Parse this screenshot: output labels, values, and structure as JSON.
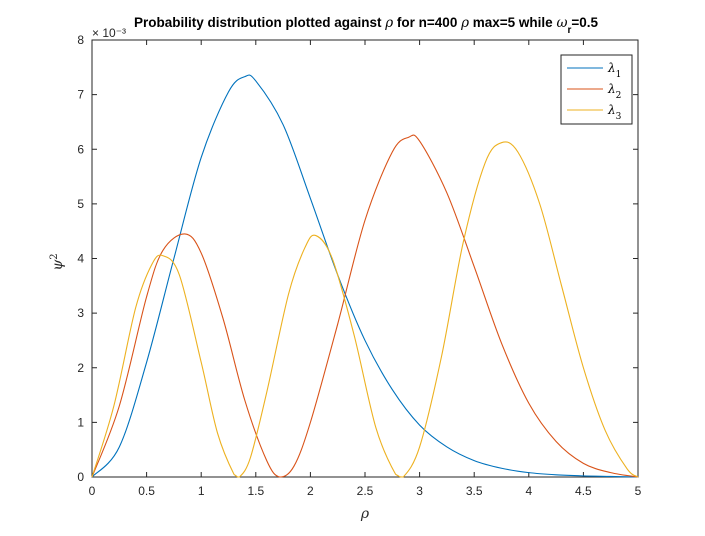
{
  "chart_data": {
    "type": "line",
    "title_parts": {
      "prefix": "Probability distribution plotted against ",
      "rho": "ρ",
      "middle": " for n=400 ",
      "rho2": "ρ",
      "middle2": " max=5 while ",
      "omega": "ω",
      "omega_sub": "r",
      "suffix": "=0.5"
    },
    "xlabel": "ρ",
    "ylabel": "ψ",
    "ylabel_sup": "2",
    "y_exponent": "× 10⁻³",
    "xlim": [
      0,
      5
    ],
    "ylim": [
      0,
      8
    ],
    "x_ticks": [
      "0",
      "0.5",
      "1",
      "1.5",
      "2",
      "2.5",
      "3",
      "3.5",
      "4",
      "4.5",
      "5"
    ],
    "y_ticks": [
      "0",
      "1",
      "2",
      "3",
      "4",
      "5",
      "6",
      "7",
      "8"
    ],
    "legend_position": "top-right",
    "grid": false,
    "colors": {
      "lambda1": "#0072BD",
      "lambda2": "#D95319",
      "lambda3": "#EDB120"
    },
    "series": [
      {
        "name": "λ₁",
        "legend_main": "λ",
        "legend_sub": "1",
        "color": "#0072BD",
        "x": [
          0,
          0.25,
          0.5,
          0.75,
          1.0,
          1.25,
          1.4,
          1.5,
          1.75,
          2.0,
          2.25,
          2.5,
          2.75,
          3.0,
          3.25,
          3.5,
          3.75,
          4.0,
          4.25,
          4.5,
          4.75,
          5.0
        ],
        "y": [
          0,
          0.55,
          2.1,
          4.0,
          5.85,
          7.05,
          7.33,
          7.25,
          6.45,
          5.1,
          3.7,
          2.5,
          1.6,
          0.95,
          0.55,
          0.3,
          0.16,
          0.08,
          0.04,
          0.02,
          0.01,
          0
        ]
      },
      {
        "name": "λ₂",
        "legend_main": "λ",
        "legend_sub": "2",
        "color": "#D95319",
        "x": [
          0,
          0.25,
          0.5,
          0.65,
          0.85,
          1.0,
          1.2,
          1.4,
          1.6,
          1.72,
          1.85,
          2.0,
          2.25,
          2.5,
          2.75,
          2.9,
          3.0,
          3.25,
          3.5,
          3.75,
          4.0,
          4.25,
          4.5,
          4.75,
          5.0
        ],
        "y": [
          0,
          1.3,
          3.3,
          4.15,
          4.45,
          4.1,
          2.9,
          1.4,
          0.3,
          0,
          0.2,
          1.0,
          2.8,
          4.7,
          5.95,
          6.22,
          6.15,
          5.2,
          3.85,
          2.45,
          1.35,
          0.65,
          0.25,
          0.08,
          0
        ]
      },
      {
        "name": "λ₃",
        "legend_main": "λ",
        "legend_sub": "3",
        "color": "#EDB120",
        "x": [
          0,
          0.2,
          0.4,
          0.55,
          0.65,
          0.8,
          1.0,
          1.15,
          1.3,
          1.35,
          1.45,
          1.6,
          1.8,
          1.95,
          2.05,
          2.2,
          2.4,
          2.6,
          2.78,
          2.85,
          3.0,
          3.2,
          3.4,
          3.6,
          3.75,
          3.9,
          4.1,
          4.3,
          4.5,
          4.7,
          4.9,
          5.0
        ],
        "y": [
          0,
          1.3,
          3.1,
          3.9,
          4.05,
          3.7,
          2.1,
          0.8,
          0.05,
          0,
          0.35,
          1.55,
          3.35,
          4.2,
          4.42,
          4.0,
          2.6,
          0.9,
          0.05,
          0,
          0.55,
          2.2,
          4.3,
          5.75,
          6.12,
          5.95,
          5.0,
          3.5,
          2.0,
          0.85,
          0.15,
          0
        ]
      }
    ]
  }
}
